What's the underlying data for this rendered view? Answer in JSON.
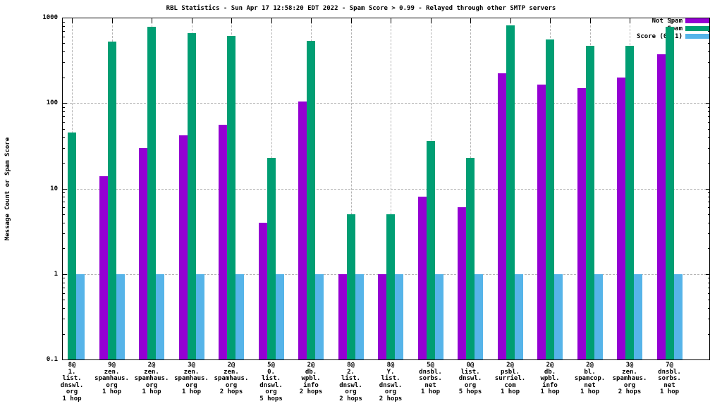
{
  "title": "RBL Statistics - Sun Apr 17 12:58:20 EDT 2022 - Spam Score > 0.99 - Relayed through other SMTP servers",
  "chart_data": {
    "type": "bar",
    "y_scale": "log",
    "title": "RBL Statistics - Sun Apr 17 12:58:20 EDT 2022 - Spam Score > 0.99 - Relayed through other SMTP servers",
    "ylabel": "Message Count or Spam Score",
    "xlabel": "",
    "ylim": [
      0.1,
      1000
    ],
    "ytick_values": [
      1000,
      100,
      10,
      1,
      0.1
    ],
    "ytick_labels": [
      "1000",
      "100",
      "10",
      "1",
      "0.1"
    ],
    "grid": true,
    "legend_position": "top-right",
    "background_color": "#ffffff",
    "grid_color": "#b4b4b4",
    "border_color": "#000000",
    "categories": [
      {
        "lines": [
          "8@",
          "1.",
          "list.",
          "dnswl.",
          "org",
          "1 hop"
        ]
      },
      {
        "lines": [
          "9@",
          "zen.",
          "spamhaus.",
          "org",
          "1 hop"
        ]
      },
      {
        "lines": [
          "2@",
          "zen.",
          "spamhaus.",
          "org",
          "1 hop"
        ]
      },
      {
        "lines": [
          "3@",
          "zen.",
          "spamhaus.",
          "org",
          "1 hop"
        ]
      },
      {
        "lines": [
          "2@",
          "zen.",
          "spamhaus.",
          "org",
          "2 hops"
        ]
      },
      {
        "lines": [
          "5@",
          "0.",
          "list.",
          "dnswl.",
          "org",
          "5 hops"
        ]
      },
      {
        "lines": [
          "2@",
          "db.",
          "wpbl.",
          "info",
          "2 hops"
        ]
      },
      {
        "lines": [
          "8@",
          "2.",
          "list.",
          "dnswl.",
          "org",
          "2 hops"
        ]
      },
      {
        "lines": [
          "8@",
          "Y.",
          "list.",
          "dnswl.",
          "org",
          "2 hops"
        ]
      },
      {
        "lines": [
          "5@",
          "dnsbl.",
          "sorbs.",
          "net",
          "1 hop"
        ]
      },
      {
        "lines": [
          "0@",
          "list.",
          "dnswl.",
          "org",
          "5 hops"
        ]
      },
      {
        "lines": [
          "2@",
          "psbl.",
          "surriel.",
          "com",
          "1 hop"
        ]
      },
      {
        "lines": [
          "2@",
          "db.",
          "wpbl.",
          "info",
          "1 hop"
        ]
      },
      {
        "lines": [
          "2@",
          "bl.",
          "spamcop.",
          "net",
          "1 hop"
        ]
      },
      {
        "lines": [
          "3@",
          "zen.",
          "spamhaus.",
          "org",
          "2 hops"
        ]
      },
      {
        "lines": [
          "7@",
          "dnsbl.",
          "sorbs.",
          "net",
          "1 hop"
        ]
      }
    ],
    "series": [
      {
        "name": "Not Spam",
        "color": "#9400d3",
        "values": [
          null,
          14,
          30,
          42,
          56,
          4,
          105,
          1,
          1,
          8,
          6,
          225,
          165,
          150,
          200,
          375
        ]
      },
      {
        "name": "Spam",
        "color": "#009e73",
        "values": [
          45,
          520,
          780,
          660,
          610,
          23,
          530,
          5,
          5,
          36,
          23,
          820,
          560,
          470,
          470,
          780
        ]
      },
      {
        "name": "Score (0..1)",
        "color": "#56b4e9",
        "values": [
          1,
          1,
          1,
          1,
          1,
          1,
          1,
          1,
          1,
          1,
          1,
          1,
          1,
          1,
          1,
          1
        ]
      }
    ]
  }
}
